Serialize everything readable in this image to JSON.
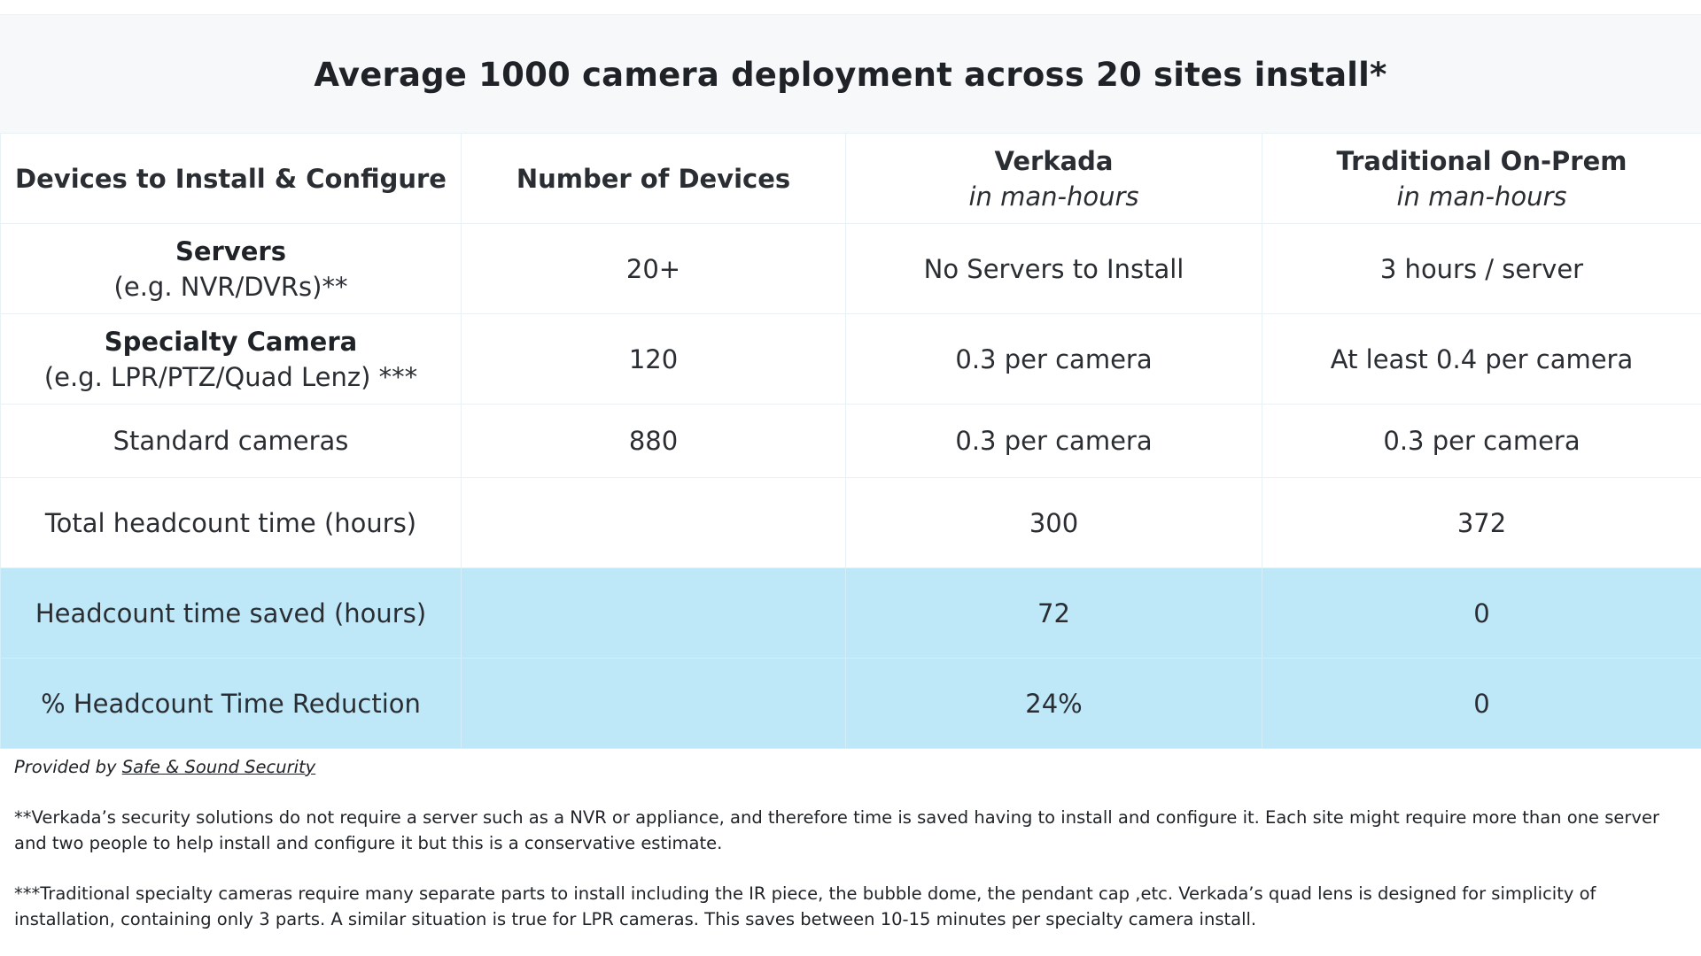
{
  "title": "Average 1000 camera deployment across 20 sites install*",
  "header": {
    "col1": "Devices to Install & Configure",
    "col2": "Number of Devices",
    "col3": {
      "main": "Verkada",
      "sub": "in man-hours"
    },
    "col4": {
      "main": "Traditional On-Prem",
      "sub": "in man-hours"
    }
  },
  "rows": [
    {
      "label": "Servers",
      "label_sub": "(e.g. NVR/DVRs)**",
      "count": "20+",
      "verkada": "No Servers to Install",
      "traditional": "3 hours / server"
    },
    {
      "label": "Specialty Camera",
      "label_sub": "(e.g. LPR/PTZ/Quad Lenz) ***",
      "count": "120",
      "verkada": "0.3 per camera",
      "traditional": "At least 0.4 per camera"
    },
    {
      "label": "Standard cameras",
      "count": "880",
      "verkada": "0.3 per camera",
      "traditional": "0.3 per camera"
    },
    {
      "label": "Total headcount time (hours)",
      "count": "",
      "verkada": "300",
      "traditional": "372"
    },
    {
      "label": "Headcount time saved (hours)",
      "count": "",
      "verkada": "72",
      "traditional": "0"
    },
    {
      "label": "% Headcount Time Reduction",
      "count": "",
      "verkada": "24%",
      "traditional": "0"
    }
  ],
  "footer": {
    "provided_prefix": "Provided by",
    "provided_link": "Safe & Sound Security",
    "note1": "**Verkada’s security solutions do not require a server such as a NVR or appliance, and therefore time is saved having to install and configure it. Each site might require more than one server and two people to help install and configure it but this is a conservative estimate.",
    "note2": "***Traditional specialty cameras require many separate parts to install including the IR piece, the bubble dome, the pendant cap ,etc. Verkada’s quad lens is designed for simplicity of installation, containing only 3 parts. A similar situation is true for LPR cameras. This saves between 10-15 minutes per specialty camera install."
  },
  "colors": {
    "highlight_row": "#bee8f8",
    "title_background": "#f6f8fa",
    "text": "#1f2328"
  }
}
